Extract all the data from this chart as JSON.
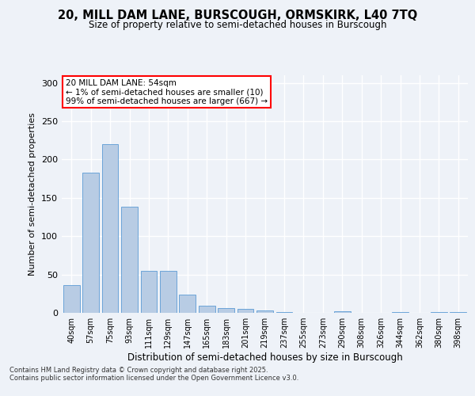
{
  "title_line1": "20, MILL DAM LANE, BURSCOUGH, ORMSKIRK, L40 7TQ",
  "title_line2": "Size of property relative to semi-detached houses in Burscough",
  "xlabel": "Distribution of semi-detached houses by size in Burscough",
  "ylabel": "Number of semi-detached properties",
  "categories": [
    "40sqm",
    "57sqm",
    "75sqm",
    "93sqm",
    "111sqm",
    "129sqm",
    "147sqm",
    "165sqm",
    "183sqm",
    "201sqm",
    "219sqm",
    "237sqm",
    "255sqm",
    "273sqm",
    "290sqm",
    "308sqm",
    "326sqm",
    "344sqm",
    "362sqm",
    "380sqm",
    "398sqm"
  ],
  "values": [
    36,
    183,
    220,
    138,
    55,
    55,
    24,
    9,
    6,
    5,
    3,
    1,
    0,
    0,
    2,
    0,
    0,
    1,
    0,
    1,
    1
  ],
  "bar_color": "#b8cce4",
  "bar_edge_color": "#5b9bd5",
  "annotation_line1": "20 MILL DAM LANE: 54sqm",
  "annotation_line2": "← 1% of semi-detached houses are smaller (10)",
  "annotation_line3": "99% of semi-detached houses are larger (667) →",
  "annotation_box_color": "#ffffff",
  "annotation_box_edge_color": "#ff0000",
  "ylim": [
    0,
    310
  ],
  "yticks": [
    0,
    50,
    100,
    150,
    200,
    250,
    300
  ],
  "footer_text": "Contains HM Land Registry data © Crown copyright and database right 2025.\nContains public sector information licensed under the Open Government Licence v3.0.",
  "background_color": "#eef2f8",
  "grid_color": "#ffffff"
}
